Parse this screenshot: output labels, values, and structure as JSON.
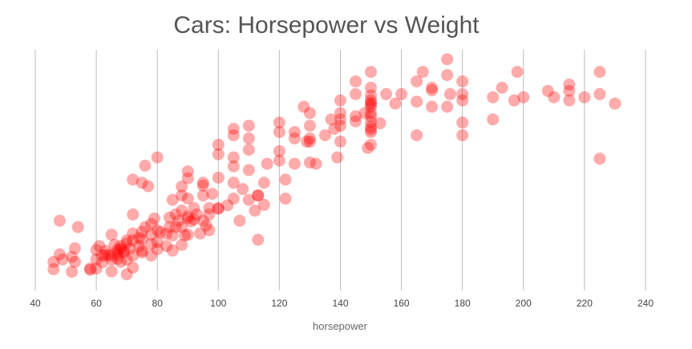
{
  "chart_data": {
    "type": "scatter",
    "title": "Cars: Horsepower vs Weight",
    "xlabel": "horsepower",
    "ylabel": "",
    "xlim": [
      40,
      240
    ],
    "ylim": [
      1500,
      5300
    ],
    "xticks": [
      "40",
      "60",
      "80",
      "100",
      "120",
      "140",
      "160",
      "180",
      "200",
      "220",
      "240"
    ],
    "grid": "vertical",
    "point_color": "#ff0000",
    "point_opacity": 0.33,
    "series": [
      {
        "points": [
          [
            46,
            1835
          ],
          [
            46,
            1950
          ],
          [
            48,
            2070
          ],
          [
            48,
            2600
          ],
          [
            49,
            1990
          ],
          [
            52,
            1795
          ],
          [
            52,
            2030
          ],
          [
            53,
            2165
          ],
          [
            53,
            1950
          ],
          [
            54,
            2500
          ],
          [
            58,
            1845
          ],
          [
            58,
            1825
          ],
          [
            60,
            1845
          ],
          [
            60,
            2140
          ],
          [
            60,
            1990
          ],
          [
            61,
            2200
          ],
          [
            62,
            2050
          ],
          [
            62,
            1945
          ],
          [
            63,
            2125
          ],
          [
            63,
            2055
          ],
          [
            64,
            2065
          ],
          [
            65,
            1800
          ],
          [
            65,
            2380
          ],
          [
            65,
            2045
          ],
          [
            65,
            1985
          ],
          [
            66,
            2220
          ],
          [
            67,
            2065
          ],
          [
            67,
            2145
          ],
          [
            67,
            2000
          ],
          [
            67,
            2110
          ],
          [
            68,
            2200
          ],
          [
            68,
            2155
          ],
          [
            68,
            1950
          ],
          [
            69,
            2100
          ],
          [
            69,
            2130
          ],
          [
            70,
            1985
          ],
          [
            70,
            2245
          ],
          [
            70,
            2290
          ],
          [
            70,
            1755
          ],
          [
            71,
            2160
          ],
          [
            72,
            2050
          ],
          [
            72,
            2290
          ],
          [
            72,
            2400
          ],
          [
            72,
            2700
          ],
          [
            72,
            3250
          ],
          [
            72,
            1860
          ],
          [
            74,
            2330
          ],
          [
            74,
            2200
          ],
          [
            75,
            2425
          ],
          [
            75,
            2310
          ],
          [
            75,
            2100
          ],
          [
            75,
            2130
          ],
          [
            75,
            3200
          ],
          [
            76,
            2500
          ],
          [
            76,
            3470
          ],
          [
            77,
            3145
          ],
          [
            78,
            2050
          ],
          [
            78,
            2380
          ],
          [
            78,
            2230
          ],
          [
            78,
            2550
          ],
          [
            79,
            2635
          ],
          [
            80,
            2265
          ],
          [
            80,
            2450
          ],
          [
            80,
            3600
          ],
          [
            80,
            2150
          ],
          [
            81,
            2420
          ],
          [
            83,
            2395
          ],
          [
            83,
            2200
          ],
          [
            84,
            2500
          ],
          [
            84,
            2650
          ],
          [
            85,
            2130
          ],
          [
            85,
            2370
          ],
          [
            85,
            2930
          ],
          [
            86,
            2700
          ],
          [
            86,
            2500
          ],
          [
            87,
            2600
          ],
          [
            88,
            2500
          ],
          [
            88,
            2760
          ],
          [
            88,
            3000
          ],
          [
            88,
            3140
          ],
          [
            88,
            2220
          ],
          [
            89,
            2370
          ],
          [
            90,
            2950
          ],
          [
            90,
            3270
          ],
          [
            90,
            2670
          ],
          [
            90,
            2380
          ],
          [
            90,
            3380
          ],
          [
            90,
            2640
          ],
          [
            91,
            2590
          ],
          [
            92,
            2800
          ],
          [
            92,
            2620
          ],
          [
            93,
            2700
          ],
          [
            94,
            2400
          ],
          [
            95,
            3000
          ],
          [
            95,
            3155
          ],
          [
            95,
            2600
          ],
          [
            95,
            3200
          ],
          [
            96,
            2525
          ],
          [
            97,
            2450
          ],
          [
            97,
            2700
          ],
          [
            97,
            2800
          ],
          [
            98,
            3025
          ],
          [
            100,
            3280
          ],
          [
            100,
            2790
          ],
          [
            100,
            3800
          ],
          [
            100,
            2800
          ],
          [
            100,
            3650
          ],
          [
            103,
            2845
          ],
          [
            105,
            3460
          ],
          [
            105,
            3600
          ],
          [
            105,
            3950
          ],
          [
            105,
            4050
          ],
          [
            105,
            3200
          ],
          [
            105,
            2950
          ],
          [
            107,
            2600
          ],
          [
            108,
            3100
          ],
          [
            110,
            3720
          ],
          [
            110,
            3900
          ],
          [
            110,
            4100
          ],
          [
            110,
            3400
          ],
          [
            110,
            2930
          ],
          [
            112,
            2760
          ],
          [
            113,
            3000
          ],
          [
            113,
            3000
          ],
          [
            113,
            2300
          ],
          [
            115,
            2850
          ],
          [
            115,
            3200
          ],
          [
            116,
            3500
          ],
          [
            120,
            3550
          ],
          [
            120,
            4000
          ],
          [
            120,
            4150
          ],
          [
            120,
            3700
          ],
          [
            122,
            3250
          ],
          [
            122,
            2950
          ],
          [
            125,
            3900
          ],
          [
            125,
            4000
          ],
          [
            125,
            3500
          ],
          [
            128,
            4400
          ],
          [
            129,
            3850
          ],
          [
            130,
            3850
          ],
          [
            130,
            3520
          ],
          [
            130,
            4300
          ],
          [
            130,
            4100
          ],
          [
            130,
            3900
          ],
          [
            132,
            3500
          ],
          [
            135,
            3950
          ],
          [
            137,
            4200
          ],
          [
            138,
            4050
          ],
          [
            139,
            3600
          ],
          [
            140,
            4500
          ],
          [
            140,
            4300
          ],
          [
            140,
            4100
          ],
          [
            140,
            4200
          ],
          [
            140,
            3850
          ],
          [
            145,
            4250
          ],
          [
            145,
            4170
          ],
          [
            145,
            4800
          ],
          [
            145,
            4600
          ],
          [
            148,
            4300
          ],
          [
            149,
            3750
          ],
          [
            150,
            4950
          ],
          [
            150,
            4700
          ],
          [
            150,
            4500
          ],
          [
            150,
            4000
          ],
          [
            150,
            4160
          ],
          [
            150,
            4400
          ],
          [
            150,
            4080
          ],
          [
            150,
            4250
          ],
          [
            150,
            4460
          ],
          [
            150,
            4580
          ],
          [
            150,
            3800
          ],
          [
            150,
            4040
          ],
          [
            150,
            4300
          ],
          [
            150,
            4440
          ],
          [
            153,
            4140
          ],
          [
            155,
            4600
          ],
          [
            158,
            4450
          ],
          [
            160,
            4600
          ],
          [
            165,
            3950
          ],
          [
            165,
            4480
          ],
          [
            165,
            4800
          ],
          [
            167,
            4950
          ],
          [
            170,
            4400
          ],
          [
            170,
            4660
          ],
          [
            170,
            4700
          ],
          [
            175,
            5150
          ],
          [
            175,
            4900
          ],
          [
            175,
            4400
          ],
          [
            176,
            4600
          ],
          [
            180,
            4600
          ],
          [
            180,
            3950
          ],
          [
            180,
            4500
          ],
          [
            180,
            4800
          ],
          [
            180,
            4150
          ],
          [
            190,
            4550
          ],
          [
            190,
            4200
          ],
          [
            193,
            4700
          ],
          [
            197,
            4500
          ],
          [
            198,
            4950
          ],
          [
            200,
            4550
          ],
          [
            208,
            4650
          ],
          [
            210,
            4550
          ],
          [
            215,
            4500
          ],
          [
            215,
            4750
          ],
          [
            215,
            4650
          ],
          [
            220,
            4550
          ],
          [
            225,
            4950
          ],
          [
            225,
            4600
          ],
          [
            225,
            3580
          ],
          [
            230,
            4450
          ]
        ]
      }
    ]
  }
}
